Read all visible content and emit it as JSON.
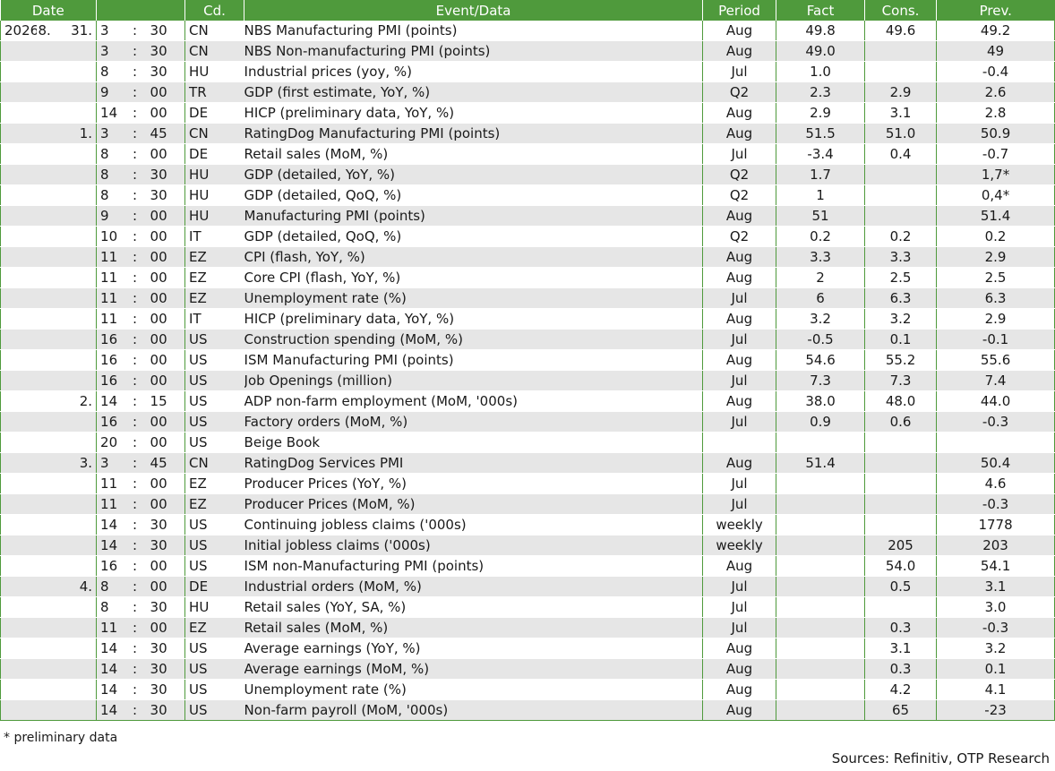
{
  "headers": {
    "date": "Date",
    "code": "Cd.",
    "event": "Event/Data",
    "period": "Period",
    "fact": "Fact",
    "cons": "Cons.",
    "prev": "Prev."
  },
  "rows": [
    {
      "year": "2026",
      "month": "8.",
      "day": "31.",
      "hour": "3",
      "min": "30",
      "code": "CN",
      "event": "NBS Manufacturing PMI (points)",
      "period": "Aug",
      "fact": "49.8",
      "cons": "49.6",
      "prev": "49.2"
    },
    {
      "year": "",
      "month": "",
      "day": "",
      "hour": "3",
      "min": "30",
      "code": "CN",
      "event": "NBS Non-manufacturing PMI (points)",
      "period": "Aug",
      "fact": "49.0",
      "cons": "",
      "prev": "49"
    },
    {
      "year": "",
      "month": "",
      "day": "",
      "hour": "8",
      "min": "30",
      "code": "HU",
      "event": "Industrial prices (yoy, %)",
      "period": "Jul",
      "fact": "1.0",
      "cons": "",
      "prev": "-0.4"
    },
    {
      "year": "",
      "month": "",
      "day": "",
      "hour": "9",
      "min": "00",
      "code": "TR",
      "event": "GDP (first estimate, YoY, %)",
      "period": "Q2",
      "fact": "2.3",
      "cons": "2.9",
      "prev": "2.6"
    },
    {
      "year": "",
      "month": "",
      "day": "",
      "hour": "14",
      "min": "00",
      "code": "DE",
      "event": "HICP (preliminary data, YoY, %)",
      "period": "Aug",
      "fact": "2.9",
      "cons": "3.1",
      "prev": "2.8"
    },
    {
      "year": "",
      "month": "",
      "day": "1.",
      "hour": "3",
      "min": "45",
      "code": "CN",
      "event": "RatingDog Manufacturing PMI (points)",
      "period": "Aug",
      "fact": "51.5",
      "cons": "51.0",
      "prev": "50.9"
    },
    {
      "year": "",
      "month": "",
      "day": "",
      "hour": "8",
      "min": "00",
      "code": "DE",
      "event": "Retail sales (MoM, %)",
      "period": "Jul",
      "fact": "-3.4",
      "cons": "0.4",
      "prev": "-0.7"
    },
    {
      "year": "",
      "month": "",
      "day": "",
      "hour": "8",
      "min": "30",
      "code": "HU",
      "event": "GDP (detailed, YoY, %)",
      "period": "Q2",
      "fact": "1.7",
      "cons": "",
      "prev": "1,7*"
    },
    {
      "year": "",
      "month": "",
      "day": "",
      "hour": "8",
      "min": "30",
      "code": "HU",
      "event": "GDP (detailed, QoQ, %)",
      "period": "Q2",
      "fact": "1",
      "cons": "",
      "prev": "0,4*"
    },
    {
      "year": "",
      "month": "",
      "day": "",
      "hour": "9",
      "min": "00",
      "code": "HU",
      "event": "Manufacturing PMI (points)",
      "period": "Aug",
      "fact": "51",
      "cons": "",
      "prev": "51.4"
    },
    {
      "year": "",
      "month": "",
      "day": "",
      "hour": "10",
      "min": "00",
      "code": "IT",
      "event": "GDP (detailed, QoQ, %)",
      "period": "Q2",
      "fact": "0.2",
      "cons": "0.2",
      "prev": "0.2"
    },
    {
      "year": "",
      "month": "",
      "day": "",
      "hour": "11",
      "min": "00",
      "code": "EZ",
      "event": "CPI (flash, YoY, %)",
      "period": "Aug",
      "fact": "3.3",
      "cons": "3.3",
      "prev": "2.9"
    },
    {
      "year": "",
      "month": "",
      "day": "",
      "hour": "11",
      "min": "00",
      "code": "EZ",
      "event": "Core CPI (flash, YoY, %)",
      "period": "Aug",
      "fact": "2",
      "cons": "2.5",
      "prev": "2.5"
    },
    {
      "year": "",
      "month": "",
      "day": "",
      "hour": "11",
      "min": "00",
      "code": "EZ",
      "event": "Unemployment rate (%)",
      "period": "Jul",
      "fact": "6",
      "cons": "6.3",
      "prev": "6.3"
    },
    {
      "year": "",
      "month": "",
      "day": "",
      "hour": "11",
      "min": "00",
      "code": "IT",
      "event": "HICP (preliminary data, YoY, %)",
      "period": "Aug",
      "fact": "3.2",
      "cons": "3.2",
      "prev": "2.9"
    },
    {
      "year": "",
      "month": "",
      "day": "",
      "hour": "16",
      "min": "00",
      "code": "US",
      "event": "Construction spending (MoM, %)",
      "period": "Jul",
      "fact": "-0.5",
      "cons": "0.1",
      "prev": "-0.1"
    },
    {
      "year": "",
      "month": "",
      "day": "",
      "hour": "16",
      "min": "00",
      "code": "US",
      "event": "ISM Manufacturing PMI (points)",
      "period": "Aug",
      "fact": "54.6",
      "cons": "55.2",
      "prev": "55.6"
    },
    {
      "year": "",
      "month": "",
      "day": "",
      "hour": "16",
      "min": "00",
      "code": "US",
      "event": "Job Openings (million)",
      "period": "Jul",
      "fact": "7.3",
      "cons": "7.3",
      "prev": "7.4"
    },
    {
      "year": "",
      "month": "",
      "day": "2.",
      "hour": "14",
      "min": "15",
      "code": "US",
      "event": "ADP non-farm employment (MoM, '000s)",
      "period": "Aug",
      "fact": "38.0",
      "cons": "48.0",
      "prev": "44.0"
    },
    {
      "year": "",
      "month": "",
      "day": "",
      "hour": "16",
      "min": "00",
      "code": "US",
      "event": "Factory orders (MoM, %)",
      "period": "Jul",
      "fact": "0.9",
      "cons": "0.6",
      "prev": "-0.3"
    },
    {
      "year": "",
      "month": "",
      "day": "",
      "hour": "20",
      "min": "00",
      "code": "US",
      "event": "Beige Book",
      "period": "",
      "fact": "",
      "cons": "",
      "prev": ""
    },
    {
      "year": "",
      "month": "",
      "day": "3.",
      "hour": "3",
      "min": "45",
      "code": "CN",
      "event": "RatingDog Services PMI",
      "period": "Aug",
      "fact": "51.4",
      "cons": "",
      "prev": "50.4"
    },
    {
      "year": "",
      "month": "",
      "day": "",
      "hour": "11",
      "min": "00",
      "code": "EZ",
      "event": "Producer Prices (YoY, %)",
      "period": "Jul",
      "fact": "",
      "cons": "",
      "prev": "4.6"
    },
    {
      "year": "",
      "month": "",
      "day": "",
      "hour": "11",
      "min": "00",
      "code": "EZ",
      "event": "Producer Prices (MoM, %)",
      "period": "Jul",
      "fact": "",
      "cons": "",
      "prev": "-0.3"
    },
    {
      "year": "",
      "month": "",
      "day": "",
      "hour": "14",
      "min": "30",
      "code": "US",
      "event": "Continuing jobless claims ('000s)",
      "period": "weekly",
      "fact": "",
      "cons": "",
      "prev": "1778"
    },
    {
      "year": "",
      "month": "",
      "day": "",
      "hour": "14",
      "min": "30",
      "code": "US",
      "event": "Initial jobless claims ('000s)",
      "period": "weekly",
      "fact": "",
      "cons": "205",
      "prev": "203"
    },
    {
      "year": "",
      "month": "",
      "day": "",
      "hour": "16",
      "min": "00",
      "code": "US",
      "event": "ISM non-Manufacturing PMI (points)",
      "period": "Aug",
      "fact": "",
      "cons": "54.0",
      "prev": "54.1"
    },
    {
      "year": "",
      "month": "",
      "day": "4.",
      "hour": "8",
      "min": "00",
      "code": "DE",
      "event": "Industrial orders (MoM, %)",
      "period": "Jul",
      "fact": "",
      "cons": "0.5",
      "prev": "3.1"
    },
    {
      "year": "",
      "month": "",
      "day": "",
      "hour": "8",
      "min": "30",
      "code": "HU",
      "event": "Retail sales (YoY, SA, %)",
      "period": "Jul",
      "fact": "",
      "cons": "",
      "prev": "3.0"
    },
    {
      "year": "",
      "month": "",
      "day": "",
      "hour": "11",
      "min": "00",
      "code": "EZ",
      "event": "Retail sales (MoM, %)",
      "period": "Jul",
      "fact": "",
      "cons": "0.3",
      "prev": "-0.3"
    },
    {
      "year": "",
      "month": "",
      "day": "",
      "hour": "14",
      "min": "30",
      "code": "US",
      "event": "Average earnings (YoY, %)",
      "period": "Aug",
      "fact": "",
      "cons": "3.1",
      "prev": "3.2"
    },
    {
      "year": "",
      "month": "",
      "day": "",
      "hour": "14",
      "min": "30",
      "code": "US",
      "event": "Average earnings (MoM, %)",
      "period": "Aug",
      "fact": "",
      "cons": "0.3",
      "prev": "0.1"
    },
    {
      "year": "",
      "month": "",
      "day": "",
      "hour": "14",
      "min": "30",
      "code": "US",
      "event": "Unemployment rate (%)",
      "period": "Aug",
      "fact": "",
      "cons": "4.2",
      "prev": "4.1"
    },
    {
      "year": "",
      "month": "",
      "day": "",
      "hour": "14",
      "min": "30",
      "code": "US",
      "event": "Non-farm payroll (MoM, '000s)",
      "period": "Aug",
      "fact": "",
      "cons": "65",
      "prev": "-23"
    }
  ],
  "footnote": "* preliminary data",
  "sources": "Sources: Refinitiv, OTP Research"
}
